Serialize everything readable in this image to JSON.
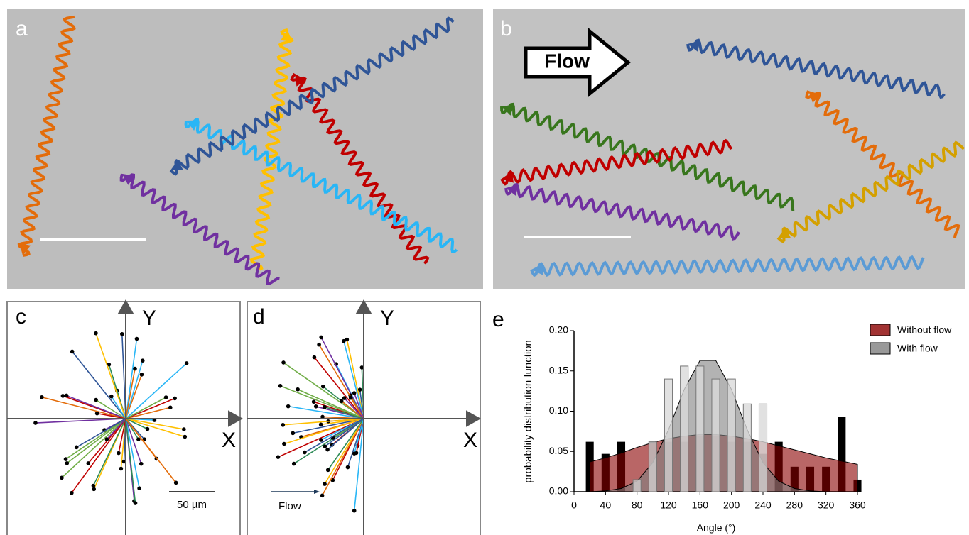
{
  "panels": {
    "a": {
      "label": "a"
    },
    "b": {
      "label": "b",
      "arrow_label": "Flow"
    },
    "c": {
      "label": "c",
      "x_axis": "X",
      "y_axis": "Y",
      "scale_bar": "50 µm"
    },
    "d": {
      "label": "d",
      "x_axis": "X",
      "y_axis": "Y",
      "flow_label": "Flow"
    }
  },
  "chart_data": {
    "type": "bar",
    "panel_label": "e",
    "x_label": "Angle (°)",
    "y_label": "probability distribution function",
    "x": [
      20,
      40,
      60,
      80,
      100,
      120,
      140,
      160,
      180,
      200,
      220,
      240,
      260,
      280,
      300,
      320,
      340,
      360
    ],
    "histograms": [
      {
        "color": "#000000",
        "values": [
          0.062,
          0.047,
          0.062,
          0.015,
          0.062,
          0.062,
          0.062,
          0.07,
          0.07,
          0.062,
          0.062,
          0.047,
          0.062,
          0.031,
          0.031,
          0.031,
          0.093,
          0.015
        ]
      },
      {
        "color": "#d9d9d9",
        "values": [
          0,
          0,
          0,
          0.015,
          0.062,
          0.14,
          0.156,
          0.156,
          0.14,
          0.14,
          0.109,
          0.109,
          0,
          0,
          0,
          0,
          0,
          0
        ]
      }
    ],
    "series": [
      {
        "name": "Without flow",
        "color": "#8b0000",
        "values": [
          0.037,
          0.042,
          0.048,
          0.055,
          0.061,
          0.066,
          0.069,
          0.071,
          0.071,
          0.069,
          0.066,
          0.062,
          0.057,
          0.052,
          0.047,
          0.042,
          0.038,
          0.034
        ]
      },
      {
        "name": "With flow",
        "color": "#808080",
        "values": [
          0,
          0.001,
          0.004,
          0.013,
          0.036,
          0.077,
          0.127,
          0.163,
          0.163,
          0.127,
          0.077,
          0.036,
          0.013,
          0.004,
          0.001,
          0,
          0,
          0
        ]
      }
    ],
    "xlim": [
      0,
      360
    ],
    "xticks": [
      0,
      40,
      80,
      120,
      160,
      200,
      240,
      280,
      320,
      360
    ],
    "ylim": [
      0,
      0.2
    ],
    "yticks": [
      {
        "value": 0,
        "label": "0.00"
      },
      {
        "value": 0.05,
        "label": "0.05"
      },
      {
        "value": 0.1,
        "label": "0.10"
      },
      {
        "value": 0.15,
        "label": "0.15"
      },
      {
        "value": 0.2,
        "label": "0.20"
      }
    ],
    "legend": "top-right"
  }
}
